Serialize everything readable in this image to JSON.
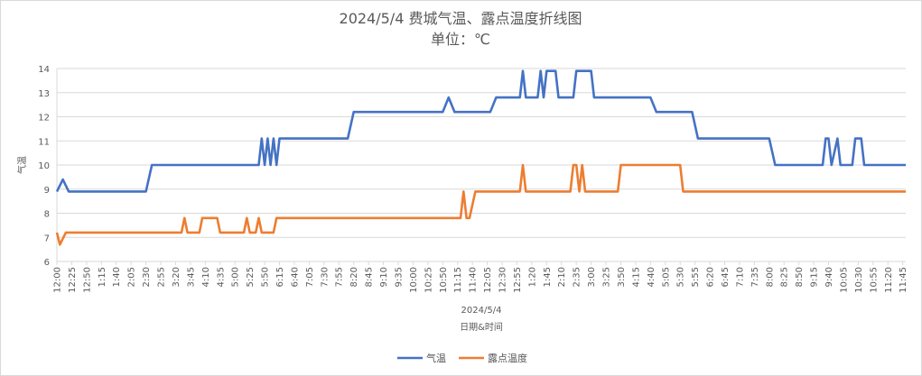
{
  "chart_data": {
    "type": "line",
    "title": "2024/5/4 费城气温、露点温度折线图",
    "subtitle": "单位：℃",
    "xlabel": "日期&时间",
    "x_group_label": "2024/5/4",
    "ylabel": "气温",
    "ylim": [
      6,
      14
    ],
    "yticks": [
      6,
      7,
      8,
      9,
      10,
      11,
      12,
      13,
      14
    ],
    "grid": true,
    "legend_position": "bottom",
    "x_tick_labels": [
      "12:00",
      "12:25",
      "12:50",
      "1:15",
      "1:40",
      "2:05",
      "2:30",
      "2:55",
      "3:20",
      "3:45",
      "4:10",
      "4:35",
      "5:00",
      "5:25",
      "5:50",
      "6:15",
      "6:40",
      "7:05",
      "7:30",
      "7:55",
      "8:20",
      "8:45",
      "9:10",
      "9:35",
      "10:00",
      "10:25",
      "10:50",
      "11:15",
      "11:40",
      "12:05",
      "12:30",
      "12:55",
      "1:20",
      "1:45",
      "2:10",
      "2:35",
      "3:00",
      "3:25",
      "3:50",
      "4:15",
      "4:40",
      "5:05",
      "5:30",
      "5:55",
      "6:20",
      "6:45",
      "7:10",
      "7:35",
      "8:00",
      "8:25",
      "8:50",
      "9:15",
      "9:40",
      "10:05",
      "10:30",
      "10:55",
      "11:20",
      "11:45"
    ],
    "x_start": "00:00",
    "x_end": "23:50",
    "series": [
      {
        "name": "气温",
        "color": "#4472C4",
        "points": [
          [
            "00:00",
            8.9
          ],
          [
            "00:10",
            9.4
          ],
          [
            "00:20",
            8.9
          ],
          [
            "02:30",
            8.9
          ],
          [
            "02:40",
            10.0
          ],
          [
            "05:40",
            10.0
          ],
          [
            "05:45",
            11.1
          ],
          [
            "05:50",
            10.0
          ],
          [
            "05:55",
            11.1
          ],
          [
            "06:00",
            10.0
          ],
          [
            "06:05",
            11.1
          ],
          [
            "06:10",
            10.0
          ],
          [
            "06:15",
            11.1
          ],
          [
            "08:10",
            11.1
          ],
          [
            "08:20",
            12.2
          ],
          [
            "10:50",
            12.2
          ],
          [
            "11:00",
            12.8
          ],
          [
            "11:10",
            12.2
          ],
          [
            "12:10",
            12.2
          ],
          [
            "12:20",
            12.8
          ],
          [
            "13:00",
            12.8
          ],
          [
            "13:05",
            13.9
          ],
          [
            "13:10",
            12.8
          ],
          [
            "13:30",
            12.8
          ],
          [
            "13:35",
            13.9
          ],
          [
            "13:40",
            12.8
          ],
          [
            "13:45",
            13.9
          ],
          [
            "14:00",
            13.9
          ],
          [
            "14:05",
            12.8
          ],
          [
            "14:30",
            12.8
          ],
          [
            "14:35",
            13.9
          ],
          [
            "15:00",
            13.9
          ],
          [
            "15:05",
            12.8
          ],
          [
            "16:40",
            12.8
          ],
          [
            "16:50",
            12.2
          ],
          [
            "17:50",
            12.2
          ],
          [
            "18:00",
            11.1
          ],
          [
            "20:00",
            11.1
          ],
          [
            "20:10",
            10.0
          ],
          [
            "21:30",
            10.0
          ],
          [
            "21:35",
            11.1
          ],
          [
            "21:40",
            11.1
          ],
          [
            "21:45",
            10.0
          ],
          [
            "21:55",
            11.1
          ],
          [
            "22:00",
            10.0
          ],
          [
            "22:20",
            10.0
          ],
          [
            "22:25",
            11.1
          ],
          [
            "22:35",
            11.1
          ],
          [
            "22:40",
            10.0
          ],
          [
            "23:50",
            10.0
          ]
        ]
      },
      {
        "name": "露点温度",
        "color": "#ED7D31",
        "points": [
          [
            "00:00",
            7.2
          ],
          [
            "00:05",
            6.7
          ],
          [
            "00:15",
            7.2
          ],
          [
            "03:30",
            7.2
          ],
          [
            "03:35",
            7.8
          ],
          [
            "03:40",
            7.2
          ],
          [
            "04:00",
            7.2
          ],
          [
            "04:05",
            7.8
          ],
          [
            "04:30",
            7.8
          ],
          [
            "04:35",
            7.2
          ],
          [
            "05:15",
            7.2
          ],
          [
            "05:20",
            7.8
          ],
          [
            "05:25",
            7.2
          ],
          [
            "05:35",
            7.2
          ],
          [
            "05:40",
            7.8
          ],
          [
            "05:45",
            7.2
          ],
          [
            "06:05",
            7.2
          ],
          [
            "06:10",
            7.8
          ],
          [
            "11:20",
            7.8
          ],
          [
            "11:25",
            8.9
          ],
          [
            "11:30",
            7.8
          ],
          [
            "11:35",
            7.8
          ],
          [
            "11:45",
            8.9
          ],
          [
            "13:00",
            8.9
          ],
          [
            "13:05",
            10.0
          ],
          [
            "13:10",
            8.9
          ],
          [
            "14:25",
            8.9
          ],
          [
            "14:30",
            10.0
          ],
          [
            "14:35",
            10.0
          ],
          [
            "14:40",
            8.9
          ],
          [
            "14:45",
            10.0
          ],
          [
            "14:50",
            8.9
          ],
          [
            "15:45",
            8.9
          ],
          [
            "15:50",
            10.0
          ],
          [
            "17:30",
            10.0
          ],
          [
            "17:35",
            8.9
          ],
          [
            "23:50",
            8.9
          ]
        ]
      }
    ]
  }
}
